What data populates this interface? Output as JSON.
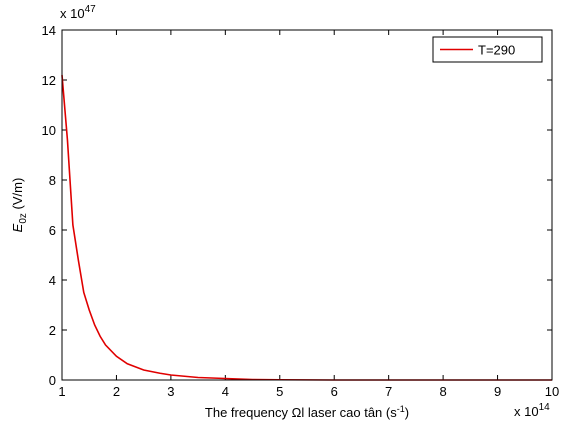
{
  "chart_data": {
    "type": "line",
    "xlabel": {
      "main": "The frequency Ωl laser cao tân (s",
      "sup": "-1",
      "rest": ")"
    },
    "ylabel": {
      "main": "E",
      "sub": "0z",
      "rest": " (V/m)"
    },
    "x_multiplier": {
      "base": "x 10",
      "exponent": "14"
    },
    "y_multiplier": {
      "base": "x 10",
      "exponent": "47"
    },
    "x": [
      1,
      1.1,
      1.2,
      1.3,
      1.4,
      1.5,
      1.6,
      1.7,
      1.8,
      2,
      2.2,
      2.5,
      2.8,
      3,
      3.5,
      4,
      4.5,
      5,
      6,
      7,
      8,
      9,
      10
    ],
    "series": [
      {
        "name": "T=290",
        "color": "#e00000",
        "values": [
          12.2,
          9.6,
          6.2,
          4.8,
          3.5,
          2.8,
          2.2,
          1.75,
          1.4,
          0.95,
          0.65,
          0.4,
          0.27,
          0.2,
          0.1,
          0.06,
          0.02,
          0.01,
          0,
          0,
          0,
          0,
          0
        ]
      }
    ],
    "xlim": [
      1,
      10
    ],
    "ylim": [
      0,
      14
    ],
    "xticks": [
      1,
      2,
      3,
      4,
      5,
      6,
      7,
      8,
      9,
      10
    ],
    "yticks": [
      0,
      2,
      4,
      6,
      8,
      10,
      12,
      14
    ],
    "grid": false,
    "legend": "upper right"
  }
}
